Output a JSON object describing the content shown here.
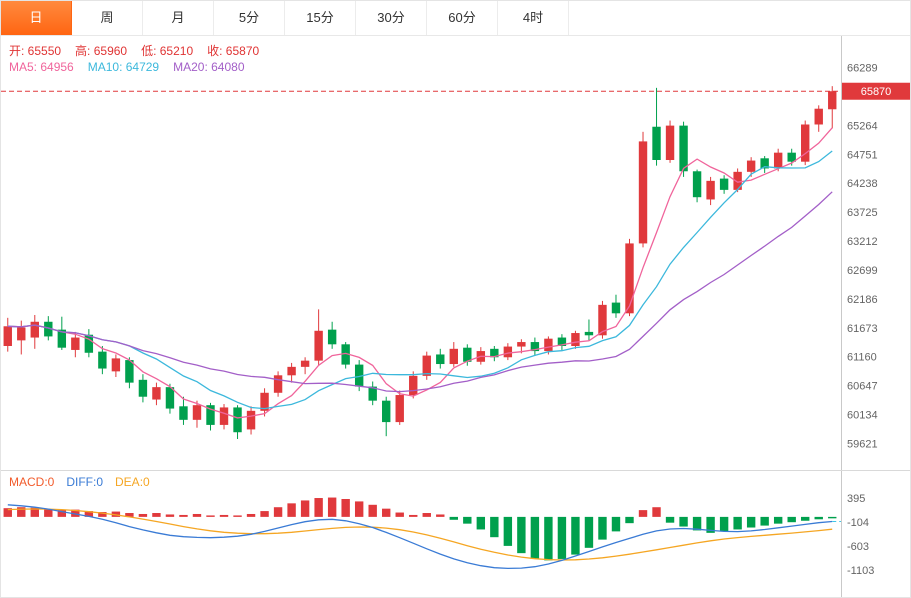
{
  "tabs": [
    {
      "label": "日",
      "active": true
    },
    {
      "label": "周"
    },
    {
      "label": "月"
    },
    {
      "label": "5分"
    },
    {
      "label": "15分"
    },
    {
      "label": "30分"
    },
    {
      "label": "60分"
    },
    {
      "label": "4时"
    }
  ],
  "ohlc": {
    "open": "开: 65550",
    "high": "高: 65960",
    "low": "低: 65210",
    "close": "收: 65870"
  },
  "ma": {
    "ma5": "MA5: 64956",
    "ma10": "MA10: 64729",
    "ma20": "MA20: 64080"
  },
  "macd_labels": {
    "macd": "MACD:0",
    "diff": "DIFF:0",
    "dea": "DEA:0"
  },
  "colors": {
    "up": "#e0393c",
    "down": "#00a04d",
    "diff": "#3a7bd5",
    "dea": "#f5a623",
    "diff_dash": "#3fc8e6",
    "axis": "#c9c9c9",
    "tab_active": "#ff6512"
  },
  "chart_data": {
    "type": "candlestick",
    "last_price": 65870,
    "price_range": [
      59150,
      66850
    ],
    "y_ticks": [
      66289,
      65264,
      64751,
      64238,
      63725,
      63212,
      62699,
      62186,
      61673,
      61160,
      60647,
      60134,
      59621
    ],
    "ma_lines": [
      {
        "period": 5,
        "color": "#f0649b"
      },
      {
        "period": 10,
        "color": "#3cb8dc"
      },
      {
        "period": 20,
        "color": "#a35fc8"
      }
    ],
    "candles": [
      [
        61350,
        61850,
        61250,
        61700
      ],
      [
        61450,
        61800,
        61200,
        61680
      ],
      [
        61500,
        61900,
        61300,
        61780
      ],
      [
        61780,
        61880,
        61450,
        61520
      ],
      [
        61640,
        61870,
        61280,
        61320
      ],
      [
        61280,
        61600,
        61150,
        61500
      ],
      [
        61550,
        61650,
        61150,
        61230
      ],
      [
        61250,
        61350,
        60850,
        60950
      ],
      [
        60900,
        61200,
        60800,
        61130
      ],
      [
        61100,
        61150,
        60600,
        60700
      ],
      [
        60750,
        60850,
        60350,
        60450
      ],
      [
        60400,
        60700,
        60300,
        60620
      ],
      [
        60620,
        60680,
        60150,
        60240
      ],
      [
        60280,
        60450,
        59950,
        60040
      ],
      [
        60040,
        60380,
        59900,
        60300
      ],
      [
        60300,
        60340,
        59850,
        59950
      ],
      [
        59950,
        60320,
        59870,
        60260
      ],
      [
        60260,
        60300,
        59700,
        59820
      ],
      [
        59870,
        60280,
        59780,
        60200
      ],
      [
        60200,
        60600,
        60100,
        60520
      ],
      [
        60520,
        60900,
        60450,
        60830
      ],
      [
        60830,
        61050,
        60700,
        60980
      ],
      [
        60980,
        61150,
        60850,
        61090
      ],
      [
        61090,
        62000,
        61000,
        61620
      ],
      [
        61640,
        61780,
        61300,
        61380
      ],
      [
        61380,
        61420,
        60950,
        61020
      ],
      [
        61020,
        61100,
        60550,
        60630
      ],
      [
        60630,
        60720,
        60300,
        60380
      ],
      [
        60380,
        60450,
        59750,
        60000
      ],
      [
        60000,
        60560,
        59950,
        60480
      ],
      [
        60480,
        60900,
        60420,
        60820
      ],
      [
        60820,
        61250,
        60750,
        61180
      ],
      [
        61200,
        61300,
        60950,
        61030
      ],
      [
        61030,
        61420,
        60980,
        61300
      ],
      [
        61320,
        61380,
        61000,
        61070
      ],
      [
        61070,
        61330,
        61020,
        61260
      ],
      [
        61300,
        61350,
        61080,
        61150
      ],
      [
        61150,
        61400,
        61100,
        61340
      ],
      [
        61340,
        61470,
        61220,
        61420
      ],
      [
        61420,
        61500,
        61180,
        61260
      ],
      [
        61260,
        61520,
        61200,
        61480
      ],
      [
        61500,
        61560,
        61280,
        61350
      ],
      [
        61350,
        61620,
        61300,
        61580
      ],
      [
        61600,
        61820,
        61450,
        61540
      ],
      [
        61540,
        62150,
        61480,
        62080
      ],
      [
        62120,
        62260,
        61850,
        61930
      ],
      [
        61930,
        63250,
        61880,
        63170
      ],
      [
        63170,
        65150,
        63100,
        64980
      ],
      [
        65240,
        65930,
        64550,
        64650
      ],
      [
        64650,
        65350,
        64600,
        65260
      ],
      [
        65260,
        65330,
        64350,
        64450
      ],
      [
        64450,
        64480,
        63900,
        63990
      ],
      [
        63950,
        64350,
        63850,
        64280
      ],
      [
        64320,
        64380,
        64050,
        64120
      ],
      [
        64120,
        64500,
        64080,
        64440
      ],
      [
        64440,
        64700,
        64350,
        64640
      ],
      [
        64680,
        64720,
        64420,
        64500
      ],
      [
        64500,
        64850,
        64450,
        64780
      ],
      [
        64780,
        64850,
        64550,
        64620
      ],
      [
        64620,
        65350,
        64560,
        65280
      ],
      [
        65280,
        65620,
        65150,
        65560
      ],
      [
        65550,
        65960,
        65210,
        65870
      ]
    ],
    "macd": {
      "ticks": [
        395,
        -104,
        -603,
        -1103
      ],
      "range": [
        -1657,
        949
      ],
      "hist": [
        180,
        200,
        190,
        160,
        140,
        150,
        120,
        100,
        110,
        80,
        60,
        80,
        50,
        40,
        60,
        30,
        40,
        30,
        60,
        120,
        200,
        280,
        340,
        390,
        400,
        370,
        320,
        250,
        170,
        90,
        40,
        80,
        50,
        -60,
        -140,
        -260,
        -420,
        -600,
        -750,
        -860,
        -900,
        -870,
        -780,
        -640,
        -470,
        -300,
        -130,
        140,
        200,
        -120,
        -200,
        -280,
        -330,
        -300,
        -260,
        -220,
        -180,
        -140,
        -110,
        -80,
        -50,
        -30
      ],
      "diff": [
        250,
        230,
        200,
        160,
        110,
        60,
        10,
        -50,
        -120,
        -200,
        -270,
        -330,
        -380,
        -410,
        -425,
        -430,
        -420,
        -400,
        -360,
        -300,
        -230,
        -160,
        -100,
        -60,
        -50,
        -80,
        -140,
        -220,
        -320,
        -430,
        -545,
        -660,
        -770,
        -870,
        -950,
        -1010,
        -1050,
        -1065,
        -1060,
        -1030,
        -975,
        -900,
        -810,
        -715,
        -620,
        -530,
        -445,
        -360,
        -290,
        -250,
        -240,
        -255,
        -280,
        -300,
        -305,
        -290,
        -260,
        -225,
        -190,
        -155,
        -120,
        -95
      ],
      "dea": [
        150,
        160,
        163,
        160,
        150,
        132,
        108,
        78,
        42,
        0,
        -45,
        -95,
        -148,
        -200,
        -248,
        -288,
        -318,
        -338,
        -348,
        -348,
        -338,
        -318,
        -292,
        -264,
        -238,
        -218,
        -210,
        -214,
        -232,
        -265,
        -312,
        -372,
        -442,
        -518,
        -595,
        -668,
        -733,
        -788,
        -832,
        -864,
        -884,
        -892,
        -888,
        -872,
        -846,
        -812,
        -772,
        -727,
        -680,
        -633,
        -585,
        -538,
        -495,
        -458,
        -428,
        -403,
        -380,
        -358,
        -335,
        -310,
        -283,
        -255
      ]
    }
  }
}
